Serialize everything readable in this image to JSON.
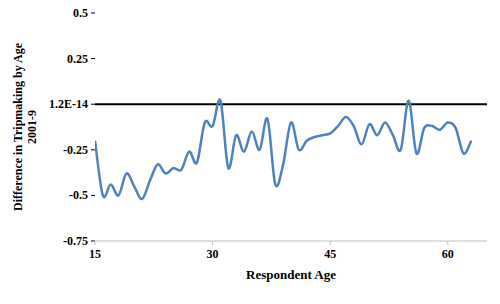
{
  "chart_data": {
    "type": "line",
    "x_label": "Respondent Age",
    "y_label": [
      "Difference in Tripmaking by Age",
      "2001-9"
    ],
    "x": [
      15,
      16,
      17,
      18,
      19,
      20,
      21,
      22,
      23,
      24,
      25,
      26,
      27,
      28,
      29,
      30,
      31,
      32,
      33,
      34,
      35,
      36,
      37,
      38,
      39,
      40,
      41,
      42,
      43,
      44,
      45,
      46,
      47,
      48,
      49,
      50,
      51,
      52,
      53,
      54,
      55,
      56,
      57,
      58,
      59,
      60,
      61,
      62,
      63
    ],
    "series": [
      {
        "name": "Difference",
        "color": "#4f81bd",
        "values": [
          -0.2,
          -0.5,
          -0.44,
          -0.5,
          -0.38,
          -0.45,
          -0.52,
          -0.42,
          -0.33,
          -0.38,
          -0.35,
          -0.36,
          -0.26,
          -0.32,
          -0.1,
          -0.12,
          0.02,
          -0.35,
          -0.17,
          -0.26,
          -0.15,
          -0.25,
          -0.08,
          -0.44,
          -0.33,
          -0.1,
          -0.25,
          -0.2,
          -0.18,
          -0.17,
          -0.16,
          -0.12,
          -0.07,
          -0.12,
          -0.22,
          -0.11,
          -0.17,
          -0.1,
          -0.17,
          -0.25,
          0.02,
          -0.27,
          -0.13,
          -0.12,
          -0.14,
          -0.1,
          -0.13,
          -0.27,
          -0.2
        ]
      }
    ],
    "xlim": [
      15,
      65
    ],
    "ylim": [
      -0.75,
      0.5
    ],
    "xticks": [
      15,
      30,
      45,
      60
    ],
    "yticks": [
      -0.75,
      -0.5,
      -0.25,
      {
        "value": 1.2e-14,
        "label": "1.2E-14"
      },
      0.25,
      0.5
    ],
    "grid": false
  }
}
